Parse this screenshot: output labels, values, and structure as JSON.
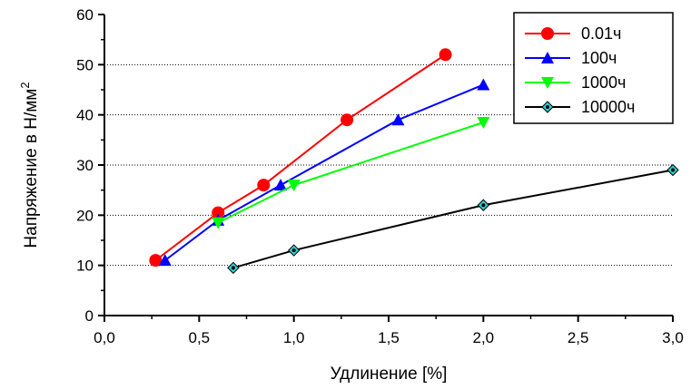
{
  "chart_data": {
    "type": "line",
    "title": "",
    "xlabel": "Удлинение [%]",
    "ylabel": "Напряжение в Н/мм",
    "ylabel_sup": "2",
    "xlim": [
      0,
      3.0
    ],
    "ylim": [
      0,
      60
    ],
    "xticks": [
      "0,0",
      "0,5",
      "1,0",
      "1,5",
      "2,0",
      "2,5",
      "3,0"
    ],
    "yticks": [
      "0",
      "10",
      "20",
      "30",
      "40",
      "50",
      "60"
    ],
    "grid": "horizontal-dotted",
    "legend_position": "top-right",
    "series": [
      {
        "name": "0.01ч",
        "color": "#ff0000",
        "marker": "circle",
        "points": [
          [
            0.27,
            11
          ],
          [
            0.6,
            20.5
          ],
          [
            0.84,
            26
          ],
          [
            1.28,
            39
          ],
          [
            1.8,
            52
          ]
        ]
      },
      {
        "name": "100ч",
        "color": "#0000ff",
        "marker": "triangle-up",
        "points": [
          [
            0.32,
            11
          ],
          [
            0.6,
            19
          ],
          [
            0.93,
            26
          ],
          [
            1.55,
            39
          ],
          [
            2.0,
            46
          ]
        ]
      },
      {
        "name": "1000ч",
        "color": "#00ff00",
        "marker": "triangle-down",
        "points": [
          [
            0.6,
            18.5
          ],
          [
            1.0,
            26
          ],
          [
            2.0,
            38.5
          ]
        ]
      },
      {
        "name": "10000ч",
        "color": "#000000",
        "marker_color": "#33cccc",
        "marker": "diamond",
        "points": [
          [
            0.68,
            9.5
          ],
          [
            1.0,
            13
          ],
          [
            2.0,
            22
          ],
          [
            3.0,
            29
          ]
        ]
      }
    ]
  }
}
